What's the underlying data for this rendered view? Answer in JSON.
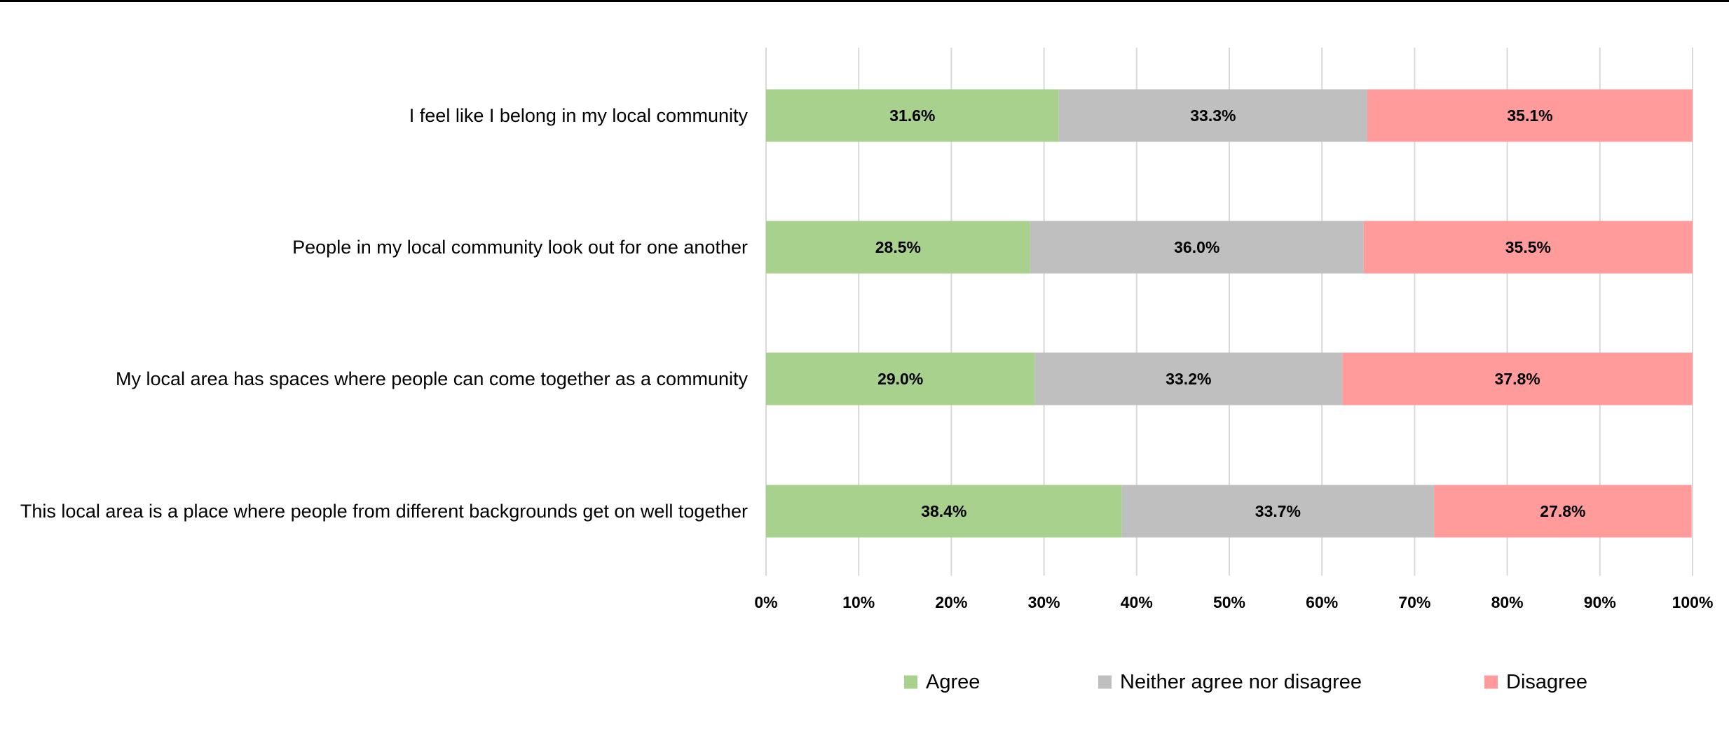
{
  "chart_data": {
    "type": "bar",
    "orientation": "horizontal",
    "stacked": "percent",
    "categories": [
      "I feel like I belong in my local community",
      "People in my local community look out for one another",
      "My local area has spaces where people can come together as a community",
      "This local area is a place where people from different backgrounds get on well together"
    ],
    "series": [
      {
        "name": "Agree",
        "color": "#a9d18e",
        "values": [
          31.6,
          28.5,
          29.0,
          38.4
        ],
        "labels": [
          "31.6%",
          "28.5%",
          "29.0%",
          "38.4%"
        ]
      },
      {
        "name": "Neither agree nor disagree",
        "color": "#bfbfbf",
        "values": [
          33.3,
          36.0,
          33.2,
          33.7
        ],
        "labels": [
          "33.3%",
          "36.0%",
          "33.2%",
          "33.7%"
        ]
      },
      {
        "name": "Disagree",
        "color": "#ff9b9b",
        "values": [
          35.1,
          35.5,
          37.8,
          27.8
        ],
        "labels": [
          "35.1%",
          "35.5%",
          "37.8%",
          "27.8%"
        ]
      }
    ],
    "xlim": [
      0,
      100
    ],
    "xticks": [
      0,
      10,
      20,
      30,
      40,
      50,
      60,
      70,
      80,
      90,
      100
    ],
    "xtick_labels": [
      "0%",
      "10%",
      "20%",
      "30%",
      "40%",
      "50%",
      "60%",
      "70%",
      "80%",
      "90%",
      "100%"
    ],
    "title": "",
    "xlabel": "",
    "ylabel": "",
    "grid": "vertical",
    "gridline_color": "#d9d9d9",
    "legend_position": "bottom"
  }
}
